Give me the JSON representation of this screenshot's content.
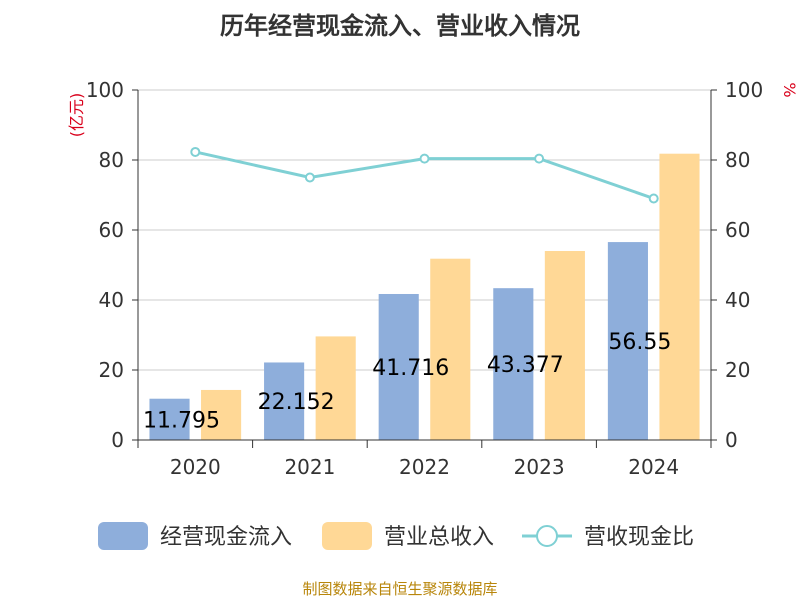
{
  "chart_data": {
    "type": "bar",
    "title": "历年经营现金流入、营业收入情况",
    "categories": [
      "2020",
      "2021",
      "2022",
      "2023",
      "2024"
    ],
    "series": [
      {
        "name": "经营现金流入",
        "kind": "bar",
        "axis": "left",
        "color": "#8eaedb",
        "values": [
          11.795,
          22.152,
          41.716,
          43.377,
          56.55
        ],
        "labels": [
          "11.795",
          "22.152",
          "41.716",
          "43.377",
          "56.55"
        ]
      },
      {
        "name": "营业总收入",
        "kind": "bar",
        "axis": "left",
        "color": "#ffd896",
        "values": [
          14.3,
          29.6,
          51.8,
          54.0,
          81.8
        ]
      },
      {
        "name": "营收现金比",
        "kind": "line",
        "axis": "right",
        "color": "#7fd0d4",
        "values": [
          82.3,
          75.0,
          80.4,
          80.4,
          69.0
        ]
      }
    ],
    "y_left": {
      "unit": "(亿元)",
      "range": [
        0,
        100
      ],
      "ticks": [
        "0",
        "20",
        "40",
        "60",
        "80",
        "100"
      ]
    },
    "y_right": {
      "unit": "%",
      "range": [
        0,
        100
      ],
      "ticks": [
        "0",
        "20",
        "40",
        "60",
        "80",
        "100"
      ]
    },
    "grid": true,
    "legend_position": "bottom"
  },
  "footer": "制图数据来自恒生聚源数据库"
}
